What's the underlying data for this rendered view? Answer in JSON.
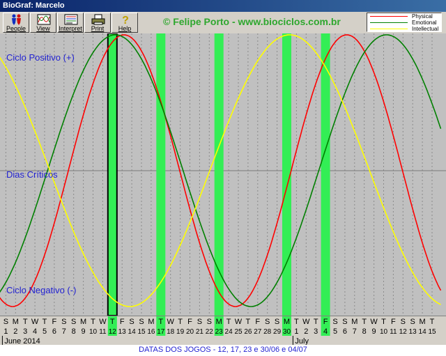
{
  "window": {
    "title": "BioGraf: Marcelo"
  },
  "toolbar": {
    "buttons": [
      {
        "label": "People",
        "icon": "people-icon"
      },
      {
        "label": "View",
        "icon": "view-icon"
      },
      {
        "label": "Interpret",
        "icon": "interpret-icon"
      },
      {
        "label": "Print",
        "icon": "printer-icon"
      },
      {
        "label": "Help",
        "icon": "help-icon"
      }
    ]
  },
  "credit": "© Felipe Porto - www.biociclos.com.br",
  "legend": [
    {
      "name": "Physical",
      "color": "#ff0000"
    },
    {
      "name": "Emotional",
      "color": "#008000"
    },
    {
      "name": "Intellectual",
      "color": "#ffff00"
    }
  ],
  "labels": {
    "positive": "Ciclo Positivo (+)",
    "critical": "Dias Críticos",
    "negative": "Ciclo Negativo (-)"
  },
  "calendar": {
    "weekdays": [
      "S",
      "M",
      "T",
      "W",
      "T",
      "F",
      "S",
      "S",
      "M",
      "T",
      "W",
      "T",
      "F",
      "S",
      "S",
      "M",
      "T",
      "W",
      "T",
      "F",
      "S",
      "S",
      "M",
      "T",
      "W",
      "T",
      "F",
      "S",
      "S",
      "M",
      "T",
      "W",
      "T",
      "F",
      "S",
      "S",
      "M",
      "T",
      "W",
      "T",
      "F",
      "S",
      "S",
      "M",
      "T"
    ],
    "days": [
      "1",
      "2",
      "3",
      "4",
      "5",
      "6",
      "7",
      "8",
      "9",
      "10",
      "11",
      "12",
      "13",
      "14",
      "15",
      "16",
      "17",
      "18",
      "19",
      "20",
      "21",
      "22",
      "23",
      "24",
      "25",
      "26",
      "27",
      "28",
      "29",
      "30",
      "1",
      "2",
      "3",
      "4",
      "5",
      "6",
      "7",
      "8",
      "9",
      "10",
      "11",
      "12",
      "13",
      "14",
      "15"
    ],
    "months": [
      {
        "name": "June 2014",
        "start_day_index": 0
      },
      {
        "name": "July",
        "start_day_index": 30
      }
    ]
  },
  "highlights": {
    "day_indices": [
      11,
      16,
      22,
      29,
      33
    ],
    "selected_index": 11,
    "color": "#33ee55"
  },
  "chart_data": {
    "type": "line",
    "x_start_index": 0,
    "x_end_index": 44,
    "series": [
      {
        "name": "Physical",
        "period": 23,
        "peak_index": 12.2,
        "color": "#ff0000"
      },
      {
        "name": "Emotional",
        "period": 28,
        "peak_index": 11.3,
        "color": "#008000"
      },
      {
        "name": "Intellectual",
        "period": 33,
        "peak_index": 29.3,
        "color": "#ffff00"
      }
    ]
  },
  "status": "DATAS DOS JOGOS - 12, 17, 23 e 30/06 e 04/07"
}
